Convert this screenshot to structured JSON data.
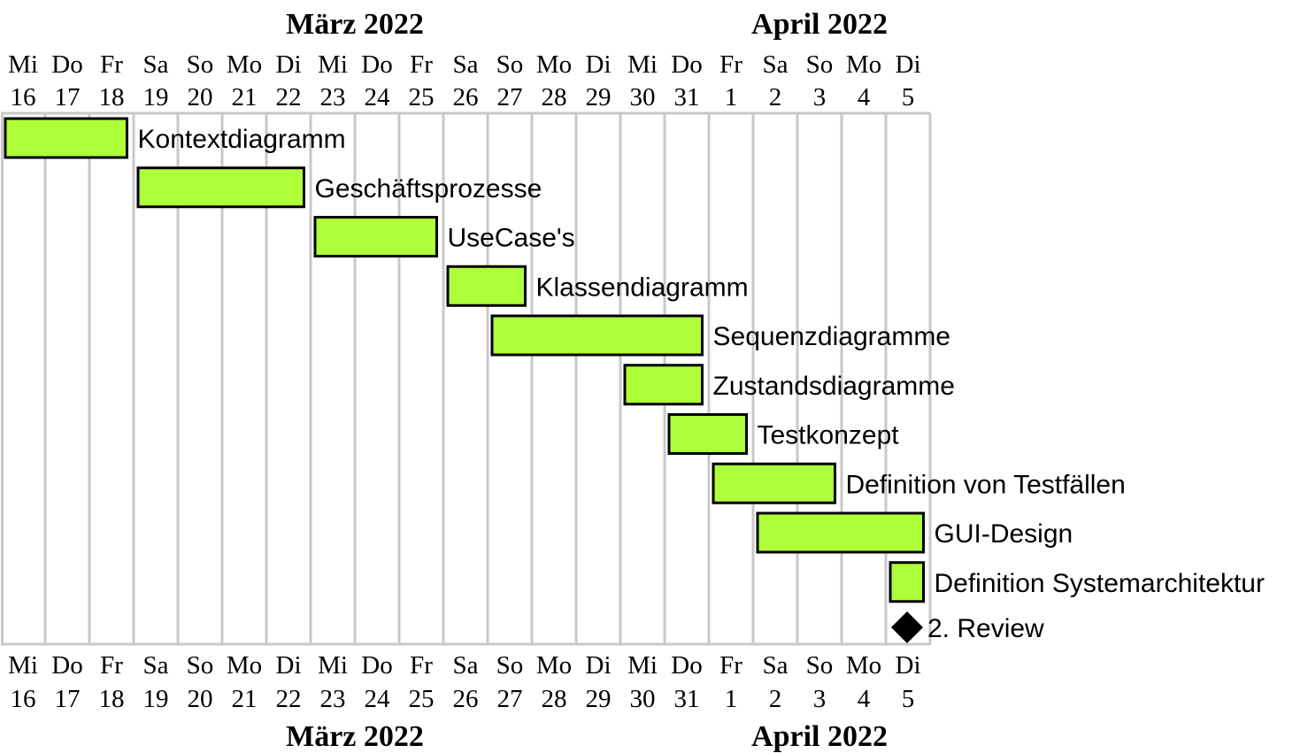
{
  "chart_data": {
    "type": "gantt",
    "months": [
      {
        "name": "März 2022",
        "start_day_index": 0,
        "end_day_index": 15
      },
      {
        "name": "April 2022",
        "start_day_index": 16,
        "end_day_index": 20
      }
    ],
    "days": [
      {
        "weekday": "Mi",
        "day": "16"
      },
      {
        "weekday": "Do",
        "day": "17"
      },
      {
        "weekday": "Fr",
        "day": "18"
      },
      {
        "weekday": "Sa",
        "day": "19"
      },
      {
        "weekday": "So",
        "day": "20"
      },
      {
        "weekday": "Mo",
        "day": "21"
      },
      {
        "weekday": "Di",
        "day": "22"
      },
      {
        "weekday": "Mi",
        "day": "23"
      },
      {
        "weekday": "Do",
        "day": "24"
      },
      {
        "weekday": "Fr",
        "day": "25"
      },
      {
        "weekday": "Sa",
        "day": "26"
      },
      {
        "weekday": "So",
        "day": "27"
      },
      {
        "weekday": "Mo",
        "day": "28"
      },
      {
        "weekday": "Di",
        "day": "29"
      },
      {
        "weekday": "Mi",
        "day": "30"
      },
      {
        "weekday": "Do",
        "day": "31"
      },
      {
        "weekday": "Fr",
        "day": "1"
      },
      {
        "weekday": "Sa",
        "day": "2"
      },
      {
        "weekday": "So",
        "day": "3"
      },
      {
        "weekday": "Mo",
        "day": "4"
      },
      {
        "weekday": "Di",
        "day": "5"
      }
    ],
    "tasks": [
      {
        "name": "Kontextdiagramm",
        "start": 0.0,
        "end": 2.85
      },
      {
        "name": "Geschäftsprozesse",
        "start": 3.0,
        "end": 6.85
      },
      {
        "name": "UseCase's",
        "start": 7.0,
        "end": 9.85
      },
      {
        "name": "Klassendiagramm",
        "start": 10.0,
        "end": 11.85
      },
      {
        "name": "Sequenzdiagramme",
        "start": 11.0,
        "end": 15.85
      },
      {
        "name": "Zustandsdiagramme",
        "start": 14.0,
        "end": 15.85
      },
      {
        "name": "Testkonzept",
        "start": 15.0,
        "end": 16.85
      },
      {
        "name": "Definition von Testfällen",
        "start": 16.0,
        "end": 18.85
      },
      {
        "name": "GUI-Design",
        "start": 17.0,
        "end": 20.85
      },
      {
        "name": "Definition Systemarchitektur",
        "start": 20.0,
        "end": 20.85
      }
    ],
    "milestones": [
      {
        "name": "2. Review",
        "at": 20.5
      }
    ],
    "colors": {
      "bar_fill": "#aeff3a",
      "bar_stroke": "#000000",
      "grid": "#c8c8c8",
      "milestone": "#000000"
    }
  }
}
